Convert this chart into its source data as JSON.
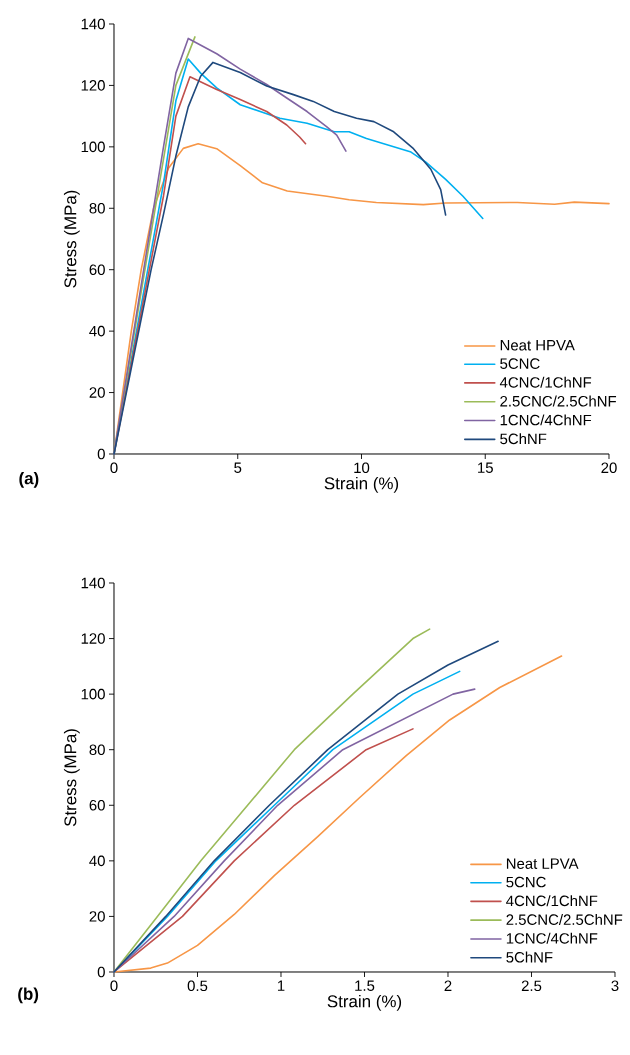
{
  "chart_data": [
    {
      "type": "line",
      "xlabel": "Strain (%)",
      "ylabel": "Stress (MPa)",
      "annotations": [
        "(a)"
      ],
      "xlim": [
        0,
        20
      ],
      "ylim": [
        0,
        140
      ],
      "xticks": [
        0,
        5,
        10,
        15,
        20
      ],
      "yticks": [
        0,
        20,
        40,
        60,
        80,
        100,
        120,
        140
      ],
      "legend": "bottom right",
      "series": [
        {
          "name": "Neat HPVA",
          "color": "#f79646",
          "x": [
            0,
            0.35,
            0.7,
            1.1,
            1.6,
            2.2,
            2.8,
            3.4,
            4.15,
            5.1,
            6.0,
            7.0,
            8.6,
            9.5,
            10.6,
            12.5,
            13.4,
            16.3,
            17.8,
            18.6,
            20
          ],
          "values": [
            0,
            20,
            40,
            60,
            80,
            93,
            99.5,
            101,
            99.4,
            93.9,
            88.3,
            85.6,
            83.9,
            82.8,
            81.9,
            81.2,
            81.7,
            81.9,
            81.3,
            82.0,
            81.5
          ]
        },
        {
          "name": "5CNC",
          "color": "#00b0f0",
          "x": [
            0,
            0.5,
            1,
            1.5,
            2,
            2.5,
            3.0,
            3.5,
            4.15,
            5.1,
            5.9,
            6.7,
            7.8,
            8.9,
            9.5,
            10.2,
            11.1,
            12.0,
            12.6,
            13.4,
            14.1,
            14.9
          ],
          "values": [
            0,
            22,
            44,
            66,
            88,
            115,
            128.6,
            124,
            119.2,
            113.7,
            111.5,
            109.3,
            107.7,
            104.9,
            104.9,
            102.7,
            100.5,
            98.3,
            95,
            89.4,
            83.9,
            76.7
          ]
        },
        {
          "name": "4CNC/1ChNF",
          "color": "#c0504d",
          "x": [
            0,
            0.5,
            1,
            1.5,
            2,
            2.5,
            3.07,
            4.15,
            5.1,
            6.17,
            6.98,
            7.5,
            7.74
          ],
          "values": [
            0,
            21,
            42,
            63,
            84,
            110,
            122.8,
            118.7,
            115.4,
            111.5,
            107.1,
            103.2,
            101
          ]
        },
        {
          "name": "2.5CNC/2.5ChNF",
          "color": "#9bbb59",
          "x": [
            0,
            0.5,
            1,
            1.5,
            2,
            2.5,
            3.27
          ],
          "values": [
            0,
            24,
            48,
            72,
            96,
            120,
            135.8
          ]
        },
        {
          "name": "1CNC/4ChNF",
          "color": "#8064a2",
          "x": [
            0,
            0.5,
            1,
            1.5,
            2,
            2.5,
            3.0,
            4.15,
            5.1,
            6.17,
            6.98,
            7.8,
            8.6,
            9.0,
            9.37
          ],
          "values": [
            0,
            25,
            50,
            75,
            100,
            124,
            135.3,
            130.3,
            125.3,
            120.3,
            115.9,
            111.5,
            106.5,
            103.8,
            98.6
          ]
        },
        {
          "name": "5ChNF",
          "color": "#1f497d",
          "x": [
            0,
            0.5,
            1,
            1.5,
            2,
            2.5,
            3.0,
            3.5,
            4.0,
            5.1,
            6.17,
            7.25,
            8.05,
            8.9,
            9.8,
            10.5,
            11.3,
            12.1,
            12.8,
            13.2,
            13.4
          ],
          "values": [
            0,
            20,
            40,
            60,
            78,
            97,
            113,
            123,
            127.5,
            124.2,
            119.8,
            117,
            114.8,
            111.5,
            109.3,
            108.2,
            104.9,
            99.4,
            92.7,
            86.1,
            77.8
          ]
        }
      ]
    },
    {
      "type": "line",
      "xlabel": "Strain (%)",
      "ylabel": "Stress (MPa)",
      "annotations": [
        "(b)"
      ],
      "xlim": [
        0,
        3
      ],
      "ylim": [
        0,
        140
      ],
      "xticks": [
        0,
        0.5,
        1,
        1.5,
        2,
        2.5,
        3
      ],
      "yticks": [
        0,
        20,
        40,
        60,
        80,
        100,
        120,
        140
      ],
      "legend": "bottom right",
      "series": [
        {
          "name": "Neat LPVA",
          "color": "#f79646",
          "x": [
            0,
            0.22,
            0.32,
            0.5,
            0.72,
            0.96,
            1.22,
            1.47,
            1.75,
            2.01,
            2.31,
            2.68
          ],
          "values": [
            0,
            1.4,
            3.2,
            9.6,
            20.7,
            34.7,
            48.7,
            62.7,
            77.9,
            90.7,
            102.4,
            113.7
          ]
        },
        {
          "name": "5CNC",
          "color": "#00b0f0",
          "x": [
            0,
            0.32,
            0.61,
            0.96,
            1.31,
            1.79,
            2.07
          ],
          "values": [
            0,
            20,
            40,
            60,
            80,
            100,
            108.2
          ]
        },
        {
          "name": "4CNC/1ChNF",
          "color": "#c0504d",
          "x": [
            0,
            0.41,
            0.72,
            1.08,
            1.51,
            1.79
          ],
          "values": [
            0,
            20,
            40,
            60,
            80,
            87.5
          ]
        },
        {
          "name": "2.5CNC/2.5ChNF",
          "color": "#9bbb59",
          "x": [
            0,
            0.26,
            0.52,
            0.8,
            1.08,
            1.43,
            1.79,
            1.89
          ],
          "values": [
            0,
            20,
            40,
            60,
            80,
            100,
            120,
            123.4
          ]
        },
        {
          "name": "1CNC/4ChNF",
          "color": "#8064a2",
          "x": [
            0,
            0.36,
            0.66,
            0.98,
            1.37,
            2.03,
            2.16
          ],
          "values": [
            0,
            20,
            40,
            60,
            80,
            100,
            101.8
          ]
        },
        {
          "name": "5ChNF",
          "color": "#1f497d",
          "x": [
            0,
            0.31,
            0.6,
            0.93,
            1.28,
            1.7,
            2.0,
            2.3
          ],
          "values": [
            0,
            20,
            40,
            60,
            80,
            100,
            110.5,
            119
          ]
        }
      ]
    }
  ]
}
